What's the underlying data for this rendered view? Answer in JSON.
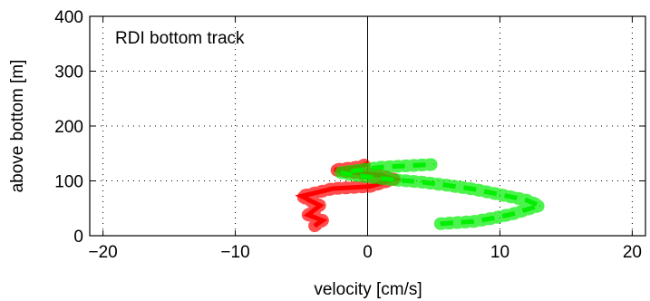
{
  "chart_data": {
    "type": "line",
    "title": "",
    "annotation": "RDI bottom track",
    "xlabel": "velocity [cm/s]",
    "ylabel": "above bottom [m]",
    "xlim": [
      -21,
      21
    ],
    "ylim": [
      0,
      400
    ],
    "xticks": [
      -20,
      -10,
      0,
      10,
      20
    ],
    "xtick_labels": [
      "−20",
      "−10",
      "0",
      "10",
      "20"
    ],
    "yticks": [
      0,
      100,
      200,
      300,
      400
    ],
    "ytick_labels": [
      "0",
      "100",
      "200",
      "300",
      "400"
    ],
    "grid": true,
    "zero_line_x": 0,
    "colors": {
      "series_1": "#ff0000",
      "series_2": "#00ee00",
      "axes": "#000000",
      "grid": "#000000"
    },
    "series": [
      {
        "color": "#ff0000",
        "style": "solid",
        "x": [
          -4.0,
          -3.4,
          -4.5,
          -3.6,
          -5.0,
          -2.6,
          0.2,
          2.0,
          1.0,
          -1.0,
          -2.5,
          -0.5,
          0.0
        ],
        "y": [
          18,
          28,
          38,
          55,
          72,
          86,
          90,
          103,
          110,
          115,
          120,
          126,
          132
        ]
      },
      {
        "color": "#00ee00",
        "style": "dashed",
        "x": [
          5.5,
          8.0,
          9.5,
          11.0,
          13.0,
          12.0,
          10.0,
          8.0,
          6.0,
          4.0,
          2.0,
          0.5,
          -1.0,
          -2.0,
          1.0,
          5.0
        ],
        "y": [
          22,
          26,
          32,
          40,
          55,
          65,
          75,
          85,
          92,
          98,
          102,
          106,
          110,
          115,
          125,
          130
        ]
      }
    ]
  }
}
